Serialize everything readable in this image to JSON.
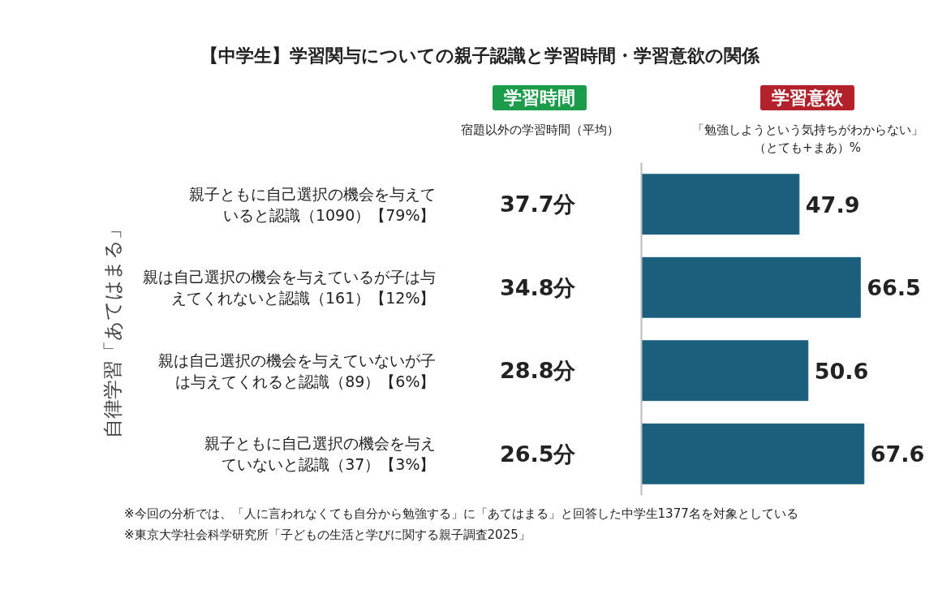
{
  "chart_data": {
    "type": "bar",
    "orientation": "horizontal",
    "title": "【中学生】学習関与についての親子認識と学習時間・学習意欲の関係",
    "ylabel": "自律学習「あてはまる」",
    "categories": [
      "親子ともに自己選択の機会を与えていると認識（1090）【79%】",
      "親は自己選択の機会を与えているが子は与えてくれないと認識（161）【12%】",
      "親は自己選択の機会を与えていないが子は与えてくれると認識（89）【6%】",
      "親子ともに自己選択の機会を与えていないと認識（37）【3%】"
    ],
    "values": [
      47.9,
      66.5,
      50.6,
      67.6
    ],
    "color": "#1b5f7c",
    "tick_labels": "y",
    "data_labels": true,
    "annotations": [
      "37.7分",
      "34.8分",
      "28.8分",
      "26.5分",
      "学習時間",
      "宿題以外の学習時間（平均）",
      "学習意欲",
      "「勉強しようという気持ちがわからない」",
      "（とても+まあ）%",
      "※今回の分析では、「人に言われなくても自分から勉強する」に「あてはまる」と回答した中学生1377名を対象としている",
      "※東京大学社会科学研究所「子どもの生活と学びに関する親子調査2025」"
    ]
  }
}
